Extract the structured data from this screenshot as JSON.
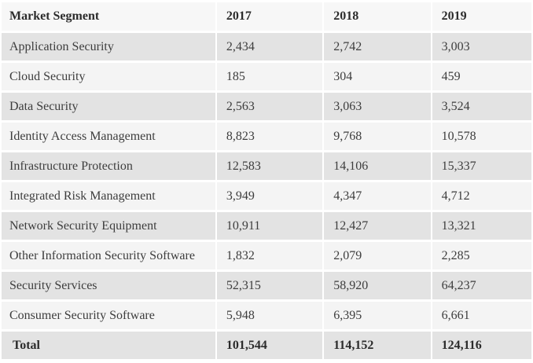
{
  "table": {
    "columns": [
      "Market Segment",
      "2017",
      "2018",
      "2019"
    ],
    "rows": [
      {
        "segment": "Application Security",
        "values": [
          "2,434",
          "2,742",
          "3,003"
        ]
      },
      {
        "segment": "Cloud Security",
        "values": [
          "185",
          "304",
          "459"
        ]
      },
      {
        "segment": "Data Security",
        "values": [
          "2,563",
          "3,063",
          "3,524"
        ]
      },
      {
        "segment": "Identity Access Management",
        "values": [
          "8,823",
          "9,768",
          "10,578"
        ]
      },
      {
        "segment": "Infrastructure Protection",
        "values": [
          "12,583",
          "14,106",
          "15,337"
        ]
      },
      {
        "segment": "Integrated Risk Management",
        "values": [
          "3,949",
          "4,347",
          "4,712"
        ]
      },
      {
        "segment": "Network Security Equipment",
        "values": [
          "10,911",
          "12,427",
          "13,321"
        ]
      },
      {
        "segment": "Other Information Security Software",
        "values": [
          "1,832",
          "2,079",
          "2,285"
        ]
      },
      {
        "segment": "Security Services",
        "values": [
          "52,315",
          "58,920",
          "64,237"
        ]
      },
      {
        "segment": "Consumer Security Software",
        "values": [
          "5,948",
          "6,395",
          "6,661"
        ]
      }
    ],
    "total": {
      "label": "Total",
      "values": [
        "101,544",
        "114,152",
        "124,116"
      ]
    }
  },
  "colors": {
    "row_stripe_dark": "#e3e3e3",
    "row_stripe_light": "#f4f4f4",
    "header_background": "#f7f7f7",
    "text_regular": "#3d3d3d",
    "text_bold": "#2b2b2b",
    "gutter": "#ffffff"
  },
  "chart_data": {
    "type": "table",
    "title": "Market Segment",
    "categories": [
      "2017",
      "2018",
      "2019"
    ],
    "series": [
      {
        "name": "Application Security",
        "values": [
          2434,
          2742,
          3003
        ]
      },
      {
        "name": "Cloud Security",
        "values": [
          185,
          304,
          459
        ]
      },
      {
        "name": "Data Security",
        "values": [
          2563,
          3063,
          3524
        ]
      },
      {
        "name": "Identity Access Management",
        "values": [
          8823,
          9768,
          10578
        ]
      },
      {
        "name": "Infrastructure Protection",
        "values": [
          12583,
          14106,
          15337
        ]
      },
      {
        "name": "Integrated Risk Management",
        "values": [
          3949,
          4347,
          4712
        ]
      },
      {
        "name": "Network Security Equipment",
        "values": [
          10911,
          12427,
          13321
        ]
      },
      {
        "name": "Other Information Security Software",
        "values": [
          1832,
          2079,
          2285
        ]
      },
      {
        "name": "Security Services",
        "values": [
          52315,
          58920,
          64237
        ]
      },
      {
        "name": "Consumer Security Software",
        "values": [
          5948,
          6395,
          6661
        ]
      }
    ],
    "total": {
      "name": "Total",
      "values": [
        101544,
        114152,
        124116
      ]
    },
    "layout": {
      "grid": "off",
      "legend": "none",
      "striped_rows": true
    }
  }
}
